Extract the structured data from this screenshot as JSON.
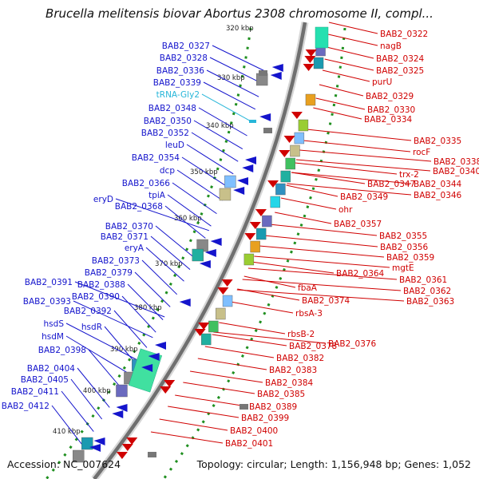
{
  "map": {
    "title": "Brucella melitensis biovar Abortus 2308 chromosome II, compl...",
    "accession_text": "Accession: NC_007624",
    "summary_text": "Topology: circular; Length: 1,156,948 bp; Genes: 1,052",
    "kbp_ticks": [
      "320 kbp",
      "330 kbp",
      "340 kbp",
      "350 kbp",
      "360 kbp",
      "370 kbp",
      "380 kbp",
      "390 kbp",
      "400 kbp",
      "410 kbp"
    ],
    "left_genes": [
      {
        "name": "BAB2_0327",
        "color": "#1414cc"
      },
      {
        "name": "BAB2_0328",
        "color": "#1414cc"
      },
      {
        "name": "BAB2_0336",
        "color": "#1414cc"
      },
      {
        "name": "BAB2_0339",
        "color": "#1414cc"
      },
      {
        "name": "tRNA-Gly2",
        "color": "#27b6d9"
      },
      {
        "name": "BAB2_0348",
        "color": "#1414cc"
      },
      {
        "name": "BAB2_0350",
        "color": "#1414cc"
      },
      {
        "name": "BAB2_0352",
        "color": "#1414cc"
      },
      {
        "name": "leuD",
        "color": "#1414cc"
      },
      {
        "name": "BAB2_0354",
        "color": "#1414cc"
      },
      {
        "name": "dcp",
        "color": "#1414cc"
      },
      {
        "name": "BAB2_0366",
        "color": "#1414cc"
      },
      {
        "name": "tpiA",
        "color": "#1414cc"
      },
      {
        "name": "eryD",
        "color": "#1414cc"
      },
      {
        "name": "BAB2_0368",
        "color": "#1414cc"
      },
      {
        "name": "BAB2_0370",
        "color": "#1414cc"
      },
      {
        "name": "BAB2_0371",
        "color": "#1414cc"
      },
      {
        "name": "eryA",
        "color": "#1414cc"
      },
      {
        "name": "BAB2_0373",
        "color": "#1414cc"
      },
      {
        "name": "BAB2_0379",
        "color": "#1414cc"
      },
      {
        "name": "BAB2_0391",
        "color": "#1414cc"
      },
      {
        "name": "BAB2_0388",
        "color": "#1414cc"
      },
      {
        "name": "BAB2_0390",
        "color": "#1414cc"
      },
      {
        "name": "BAB2_0393",
        "color": "#1414cc"
      },
      {
        "name": "BAB2_0392",
        "color": "#1414cc"
      },
      {
        "name": "hsdS",
        "color": "#1414cc"
      },
      {
        "name": "hsdR",
        "color": "#1414cc"
      },
      {
        "name": "hsdM",
        "color": "#1414cc"
      },
      {
        "name": "BAB2_0398",
        "color": "#1414cc"
      },
      {
        "name": "BAB2_0404",
        "color": "#1414cc"
      },
      {
        "name": "BAB2_0405",
        "color": "#1414cc"
      },
      {
        "name": "BAB2_0411",
        "color": "#1414cc"
      },
      {
        "name": "BAB2_0412",
        "color": "#1414cc"
      }
    ],
    "right_genes": [
      {
        "name": "BAB2_0322",
        "color": "#d00000"
      },
      {
        "name": "nagB",
        "color": "#d00000"
      },
      {
        "name": "BAB2_0324",
        "color": "#d00000"
      },
      {
        "name": "BAB2_0325",
        "color": "#d00000"
      },
      {
        "name": "purU",
        "color": "#d00000"
      },
      {
        "name": "BAB2_0329",
        "color": "#d00000"
      },
      {
        "name": "BAB2_0330",
        "color": "#d00000"
      },
      {
        "name": "BAB2_0334",
        "color": "#d00000"
      },
      {
        "name": "BAB2_0335",
        "color": "#d00000"
      },
      {
        "name": "rocF",
        "color": "#d00000"
      },
      {
        "name": "BAB2_0338",
        "color": "#d00000"
      },
      {
        "name": "BAB2_0340",
        "color": "#d00000"
      },
      {
        "name": "trx-2",
        "color": "#d00000"
      },
      {
        "name": "BAB2_0344",
        "color": "#d00000"
      },
      {
        "name": "BAB2_0347",
        "color": "#d00000"
      },
      {
        "name": "BAB2_0346",
        "color": "#d00000"
      },
      {
        "name": "BAB2_0349",
        "color": "#d00000"
      },
      {
        "name": "ohr",
        "color": "#d00000"
      },
      {
        "name": "BAB2_0357",
        "color": "#d00000"
      },
      {
        "name": "BAB2_0355",
        "color": "#d00000"
      },
      {
        "name": "BAB2_0356",
        "color": "#d00000"
      },
      {
        "name": "BAB2_0359",
        "color": "#d00000"
      },
      {
        "name": "mgtE",
        "color": "#d00000"
      },
      {
        "name": "BAB2_0364",
        "color": "#d00000"
      },
      {
        "name": "BAB2_0361",
        "color": "#d00000"
      },
      {
        "name": "BAB2_0362",
        "color": "#d00000"
      },
      {
        "name": "fbaA",
        "color": "#d00000"
      },
      {
        "name": "BAB2_0363",
        "color": "#d00000"
      },
      {
        "name": "BAB2_0374",
        "color": "#d00000"
      },
      {
        "name": "rbsA-3",
        "color": "#d00000"
      },
      {
        "name": "rbsB-2",
        "color": "#d00000"
      },
      {
        "name": "BAB2_0376",
        "color": "#d00000"
      },
      {
        "name": "BAB2_0378",
        "color": "#d00000"
      },
      {
        "name": "BAB2_0382",
        "color": "#d00000"
      },
      {
        "name": "BAB2_0383",
        "color": "#d00000"
      },
      {
        "name": "BAB2_0384",
        "color": "#d00000"
      },
      {
        "name": "BAB2_0385",
        "color": "#d00000"
      },
      {
        "name": "BAB2_0389",
        "color": "#d00000"
      },
      {
        "name": "BAB2_0399",
        "color": "#d00000"
      },
      {
        "name": "BAB2_0400",
        "color": "#d00000"
      },
      {
        "name": "BAB2_0401",
        "color": "#d00000"
      }
    ],
    "colors": {
      "forward_strand": "#d00000",
      "reverse_strand": "#1414cc",
      "trna": "#27b6d9",
      "backbone": "#6f6f6f",
      "tick_marks": "#1f8f1f"
    }
  }
}
